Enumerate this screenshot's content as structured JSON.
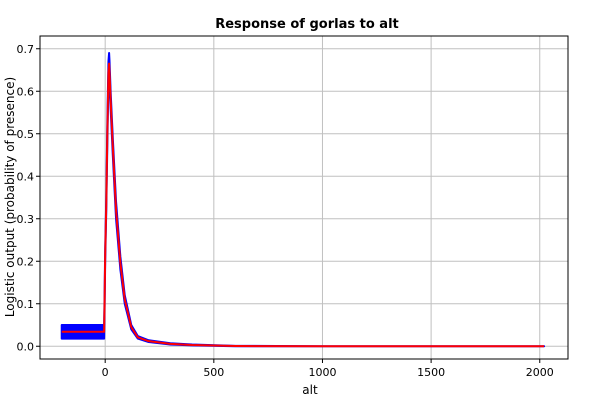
{
  "chart_data": {
    "type": "line",
    "title": "Response of gorlas to alt",
    "xlabel": "alt",
    "ylabel": "Logistic output (probability of presence)",
    "xlim": [
      -300,
      2130
    ],
    "ylim": [
      -0.03,
      0.73
    ],
    "xticks": [
      0,
      500,
      1000,
      1500,
      2000
    ],
    "yticks": [
      0.0,
      0.1,
      0.2,
      0.3,
      0.4,
      0.5,
      0.6,
      0.7
    ],
    "xtick_labels": [
      "0",
      "500",
      "1000",
      "1500",
      "2000"
    ],
    "ytick_labels": [
      "0.0",
      "0.1",
      "0.2",
      "0.3",
      "0.4",
      "0.5",
      "0.6",
      "0.7"
    ],
    "grid": true,
    "colors": {
      "band": "#0000ff",
      "mean": "#ff0000"
    },
    "band": {
      "x": [
        -200,
        -5,
        -3,
        0,
        5,
        10,
        15,
        18,
        20,
        25,
        35,
        50,
        70,
        90,
        120,
        150,
        200,
        300,
        400,
        600,
        1000,
        1500,
        2020
      ],
      "lower": [
        0.018,
        0.018,
        0.08,
        0.2,
        0.32,
        0.48,
        0.62,
        0.64,
        0.62,
        0.56,
        0.45,
        0.3,
        0.18,
        0.1,
        0.04,
        0.018,
        0.01,
        0.004,
        0.002,
        0.0,
        0.0,
        0.0,
        0.0
      ],
      "upper": [
        0.05,
        0.05,
        0.11,
        0.23,
        0.35,
        0.53,
        0.67,
        0.69,
        0.67,
        0.6,
        0.49,
        0.34,
        0.21,
        0.12,
        0.05,
        0.024,
        0.014,
        0.007,
        0.004,
        0.001,
        0.0,
        0.0,
        0.0
      ]
    },
    "series": [
      {
        "x": [
          -200,
          -5,
          -3,
          0,
          5,
          10,
          15,
          18,
          20,
          25,
          35,
          50,
          70,
          90,
          120,
          150,
          200,
          300,
          400,
          600,
          1000,
          1500,
          2020
        ],
        "values": [
          0.034,
          0.034,
          0.095,
          0.215,
          0.335,
          0.505,
          0.645,
          0.665,
          0.645,
          0.58,
          0.47,
          0.32,
          0.195,
          0.11,
          0.045,
          0.021,
          0.012,
          0.0055,
          0.003,
          0.0005,
          0.0,
          0.0,
          0.0
        ]
      }
    ]
  }
}
